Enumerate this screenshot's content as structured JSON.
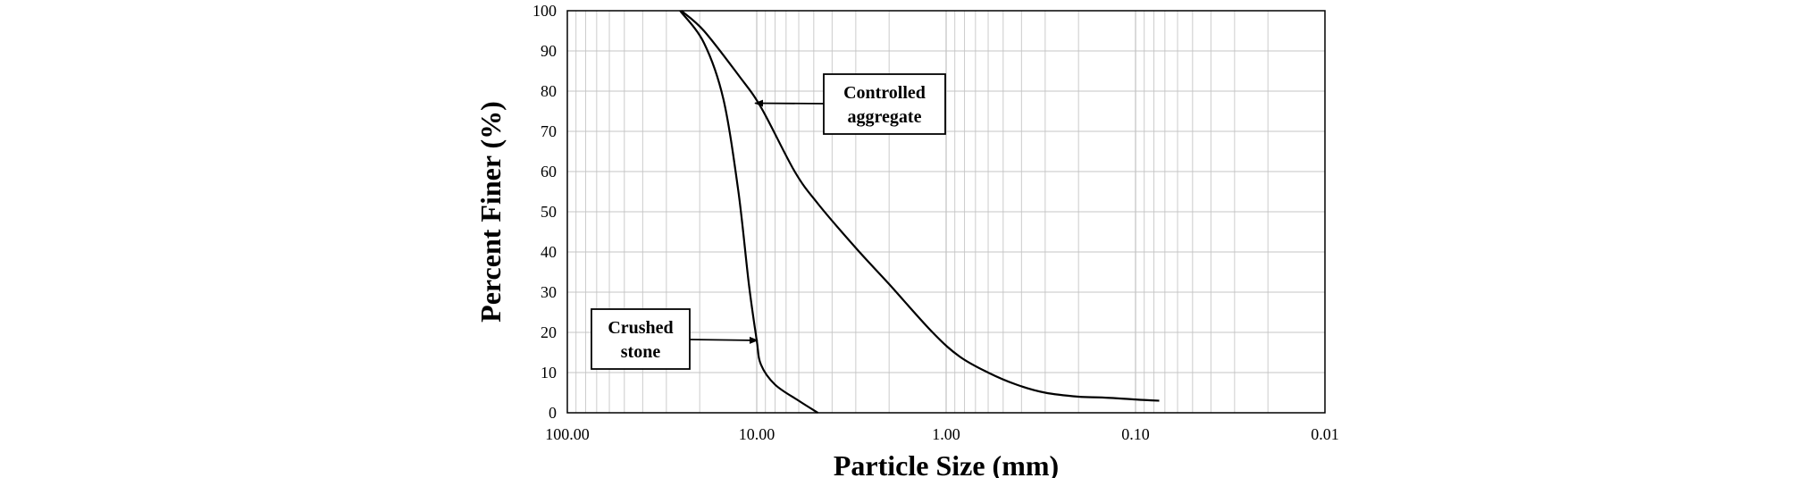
{
  "chart_data": {
    "type": "line",
    "xlabel": "Particle Size (mm)",
    "ylabel": "Percent Finer  (%)",
    "x_scale": "log",
    "x_reversed": true,
    "xlim": [
      100,
      0.01
    ],
    "ylim": [
      0,
      100
    ],
    "x_ticks": [
      "100.00",
      "10.00",
      "1.00",
      "0.10",
      "0.01"
    ],
    "y_ticks": [
      "0",
      "10",
      "20",
      "30",
      "40",
      "50",
      "60",
      "70",
      "80",
      "90",
      "100"
    ],
    "grid": true,
    "series": [
      {
        "label_lines": [
          "Crushed",
          "stone"
        ],
        "x": [
          25.4,
          19.0,
          15.0,
          12.5,
          11.0,
          10.0,
          9.5,
          8.0,
          6.0,
          4.75
        ],
        "y": [
          100,
          92,
          78,
          55,
          32,
          18,
          12,
          7,
          3,
          0
        ]
      },
      {
        "label_lines": [
          "Controlled",
          "aggregate"
        ],
        "x": [
          25.0,
          19.0,
          12.5,
          9.5,
          6.3,
          4.75,
          3.0,
          2.0,
          1.18,
          0.85,
          0.6,
          0.425,
          0.3,
          0.2,
          0.15,
          0.1,
          0.075
        ],
        "y": [
          100,
          95,
          84,
          76,
          60,
          52,
          41,
          32,
          20,
          14,
          10,
          7,
          5,
          4,
          3.8,
          3.3,
          3.0
        ]
      }
    ],
    "annotations": [
      {
        "lines": [
          "Controlled",
          "aggregate"
        ],
        "points_to": {
          "x": 10.2,
          "y": 77
        }
      },
      {
        "lines": [
          "Crushed",
          "stone"
        ],
        "points_to": {
          "x": 9.9,
          "y": 18
        }
      }
    ]
  }
}
